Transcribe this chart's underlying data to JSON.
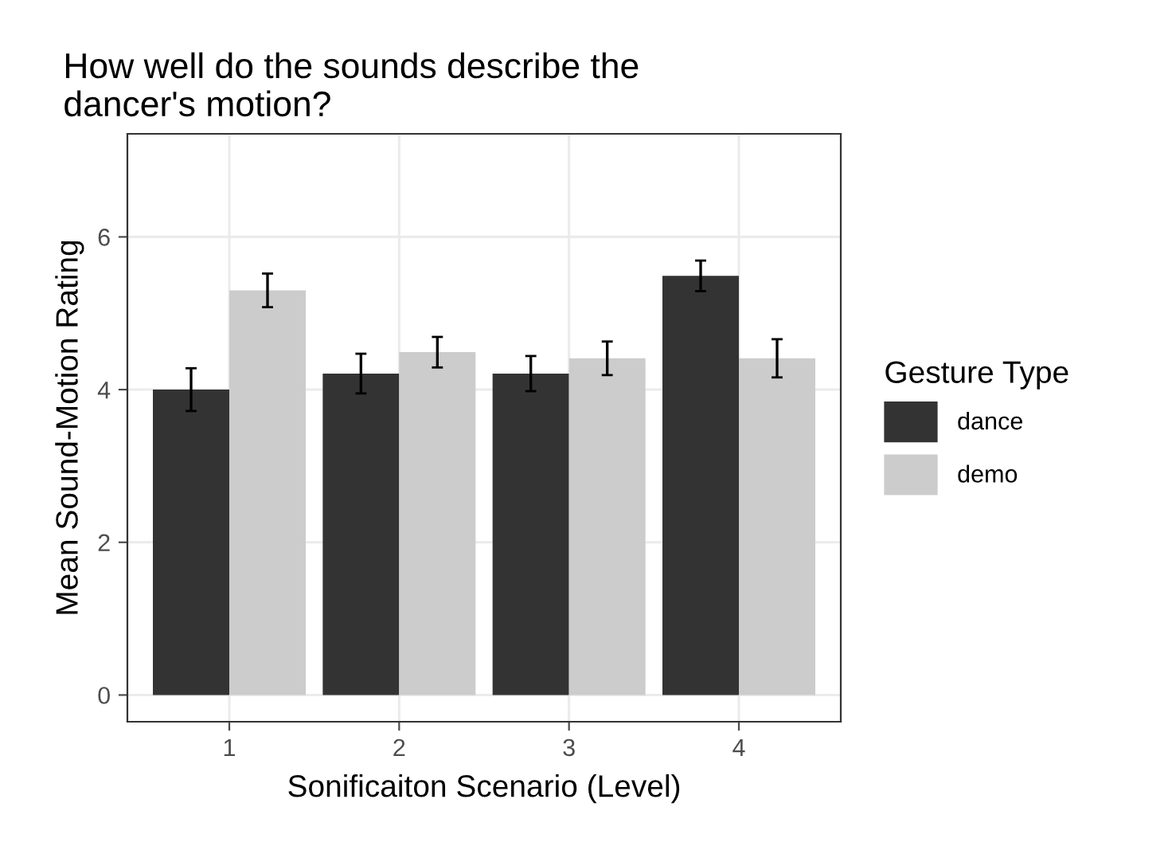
{
  "chart_data": {
    "type": "bar",
    "title": "How well do the sounds describe the\ndancer's motion?",
    "xlabel": "Sonificaiton Scenario (Level)",
    "ylabel": "Mean Sound-Motion Rating",
    "legend_title": "Gesture Type",
    "categories": [
      "1",
      "2",
      "3",
      "4"
    ],
    "series": [
      {
        "name": "dance",
        "color": "#333333",
        "values": [
          4.0,
          4.21,
          4.21,
          5.49
        ],
        "errors": [
          0.28,
          0.26,
          0.23,
          0.2
        ]
      },
      {
        "name": "demo",
        "color": "#cccccc",
        "values": [
          5.3,
          4.49,
          4.41,
          4.41
        ],
        "errors": [
          0.22,
          0.2,
          0.22,
          0.25
        ]
      }
    ],
    "ylim": [
      -0.35,
      7.35
    ],
    "yticks": [
      0,
      2,
      4,
      6
    ],
    "grid": true,
    "legend": "right"
  }
}
